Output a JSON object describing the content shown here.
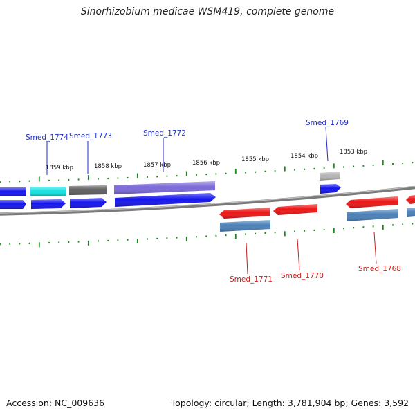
{
  "title": "Sinorhizobium medicae WSM419, complete genome",
  "footer": {
    "accession": "Accession: NC_009636",
    "stats": "Topology: circular; Length: 3,781,904 bp; Genes: 3,592"
  },
  "colors": {
    "backbone": "#8a8a8a",
    "tick": "#1a8a1a",
    "forward_label": "#1f2fc8",
    "reverse_label": "#c81e1e",
    "blue": "#1414ee",
    "cyan": "#16e3e3",
    "dark_gray": "#606060",
    "purple": "#7b68d8",
    "light_gray": "#b8b8b8",
    "red": "#ee1515",
    "steel_blue": "#4a80b8"
  },
  "kbp_labels": [
    "1859 kbp",
    "1858 kbp",
    "1857 kbp",
    "1856 kbp",
    "1855 kbp",
    "1854 kbp",
    "1853 kbp"
  ],
  "gene_labels_forward": [
    "Smed_1774",
    "Smed_1773",
    "Smed_1772",
    "Smed_1769"
  ],
  "gene_labels_reverse": [
    "Smed_1771",
    "Smed_1770",
    "Smed_1768"
  ]
}
